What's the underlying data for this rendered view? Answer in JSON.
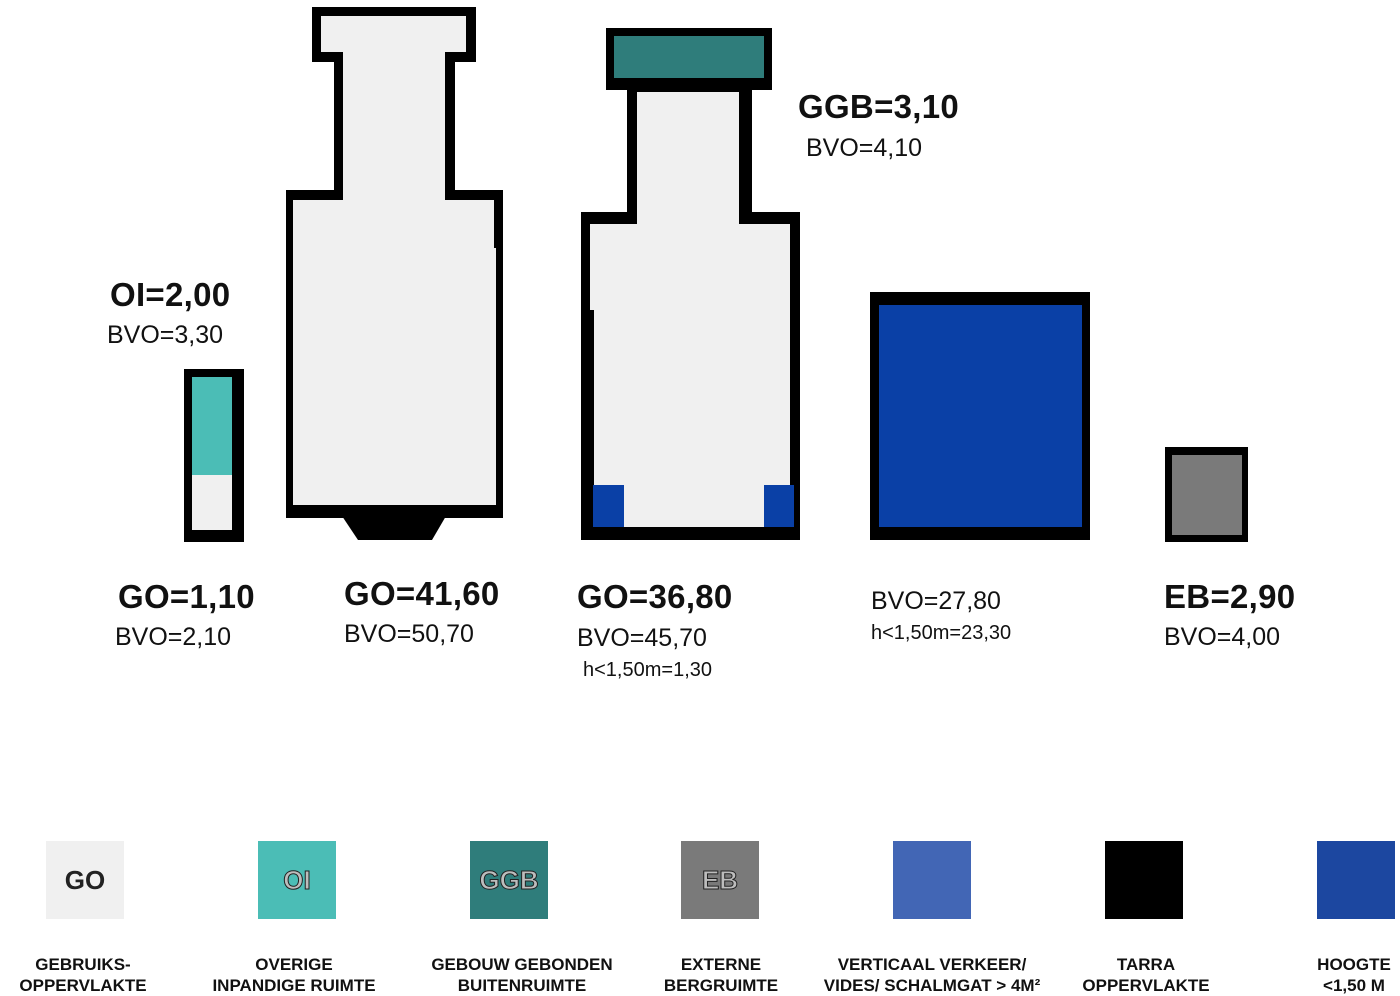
{
  "diagram": {
    "blocks": [
      {
        "id": "oi-go",
        "labels": {
          "top_main": "OI=2,00",
          "top_sub": "BVO=3,30",
          "main": "GO=1,10",
          "sub": "BVO=2,10"
        }
      },
      {
        "id": "go-large",
        "labels": {
          "main": "GO=41,60",
          "sub": "BVO=50,70"
        }
      },
      {
        "id": "go-ggb",
        "labels": {
          "top_main": "GGB=3,10",
          "top_sub": "BVO=4,10",
          "main": "GO=36,80",
          "sub": "BVO=45,70",
          "extra": "h<1,50m=1,30"
        }
      },
      {
        "id": "vertical",
        "labels": {
          "sub": "BVO=27,80",
          "extra": "h<1,50m=23,30"
        }
      },
      {
        "id": "eb",
        "labels": {
          "main": "EB=2,90",
          "sub": "BVO=4,00"
        }
      }
    ]
  },
  "legend": [
    {
      "code": "GO",
      "color": "#f0f0f0",
      "lines": [
        "GEBRUIKS-",
        "OPPERVLAKTE"
      ]
    },
    {
      "code": "OI",
      "color": "#4bbdb6",
      "lines": [
        "OVERIGE",
        "INPANDIGE RUIMTE"
      ]
    },
    {
      "code": "GGB",
      "color": "#2f7d7b",
      "lines": [
        "GEBOUW GEBONDEN",
        "BUITENRUIMTE"
      ]
    },
    {
      "code": "EB",
      "color": "#7a7a7a",
      "lines": [
        "EXTERNE",
        "BERGRUIMTE"
      ]
    },
    {
      "code": "",
      "color": "#4266b5",
      "lines": [
        "VERTICAAL VERKEER/",
        "VIDES/ SCHALMGAT > 4M²"
      ]
    },
    {
      "code": "",
      "color": "#000000",
      "lines": [
        "TARRA",
        "OPPERVLAKTE"
      ]
    },
    {
      "code": "",
      "color": "#1c47a0",
      "lines": [
        "HOOGTE",
        "<1,50 M"
      ]
    }
  ],
  "colors": {
    "go": "#f0f0f0",
    "oi": "#4bbdb6",
    "ggb": "#2f7d7b",
    "eb": "#7a7a7a",
    "tarra": "#000000",
    "blue": "#0a40a6"
  }
}
